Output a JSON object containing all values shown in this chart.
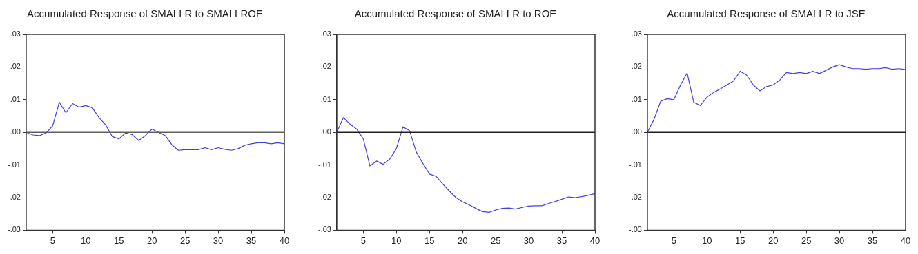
{
  "chart_data": [
    {
      "type": "line",
      "title": "Accumulated Response of SMALLR to SMALLROE",
      "x": [
        1,
        2,
        3,
        4,
        5,
        6,
        7,
        8,
        9,
        10,
        11,
        12,
        13,
        14,
        15,
        16,
        17,
        18,
        19,
        20,
        21,
        22,
        23,
        24,
        25,
        26,
        27,
        28,
        29,
        30,
        31,
        32,
        33,
        34,
        35,
        36,
        37,
        38,
        39,
        40
      ],
      "series": [
        {
          "color": "#4040e0",
          "values": [
            0,
            -0.0008,
            -0.001,
            -0.0002,
            0.002,
            0.0092,
            0.006,
            0.0088,
            0.0077,
            0.0082,
            0.0075,
            0.0045,
            0.0023,
            -0.0013,
            -0.002,
            -0.0002,
            -0.0007,
            -0.0025,
            -0.001,
            0.001,
            0,
            -0.001,
            -0.0038,
            -0.0055,
            -0.0053,
            -0.0053,
            -0.0053,
            -0.0047,
            -0.0053,
            -0.0047,
            -0.0052,
            -0.0055,
            -0.005,
            -0.004,
            -0.0035,
            -0.0032,
            -0.0032,
            -0.0035,
            -0.0032,
            -0.0035
          ]
        }
      ],
      "xlim": [
        1,
        40
      ],
      "xticks": [
        5,
        10,
        15,
        20,
        25,
        30,
        35,
        40
      ],
      "ylim": [
        -0.03,
        0.03
      ],
      "yticks": [
        {
          "value": -0.03,
          "label": "-.03"
        },
        {
          "value": -0.02,
          "label": "-.02"
        },
        {
          "value": -0.01,
          "label": "-.01"
        },
        {
          "value": 0,
          "label": ".00"
        },
        {
          "value": 0.01,
          "label": ".01"
        },
        {
          "value": 0.02,
          "label": ".02"
        },
        {
          "value": 0.03,
          "label": ".03"
        }
      ],
      "ref_lines": [
        {
          "axis": "y",
          "value": 0,
          "color": "#606060"
        }
      ],
      "grid": false,
      "legend": false,
      "marker": "none",
      "line_style": "solid"
    },
    {
      "type": "line",
      "title": "Accumulated Response of SMALLR to ROE",
      "x": [
        1,
        2,
        3,
        4,
        5,
        6,
        7,
        8,
        9,
        10,
        11,
        12,
        13,
        14,
        15,
        16,
        17,
        18,
        19,
        20,
        21,
        22,
        23,
        24,
        25,
        26,
        27,
        28,
        29,
        30,
        31,
        32,
        33,
        34,
        35,
        36,
        37,
        38,
        39,
        40
      ],
      "series": [
        {
          "color": "#4040e0",
          "values": [
            0,
            0.0045,
            0.0025,
            0.001,
            -0.002,
            -0.0103,
            -0.0088,
            -0.0098,
            -0.0082,
            -0.005,
            0.0017,
            0.0005,
            -0.006,
            -0.0095,
            -0.0128,
            -0.0135,
            -0.0158,
            -0.018,
            -0.02,
            -0.0213,
            -0.0222,
            -0.0233,
            -0.0243,
            -0.0245,
            -0.0238,
            -0.0233,
            -0.0232,
            -0.0235,
            -0.023,
            -0.0226,
            -0.0225,
            -0.0225,
            -0.0218,
            -0.0212,
            -0.0205,
            -0.0198,
            -0.02,
            -0.0197,
            -0.0193,
            -0.0188
          ]
        }
      ],
      "xlim": [
        1,
        40
      ],
      "xticks": [
        5,
        10,
        15,
        20,
        25,
        30,
        35,
        40
      ],
      "ylim": [
        -0.03,
        0.03
      ],
      "yticks": [
        {
          "value": -0.03,
          "label": "-.03"
        },
        {
          "value": -0.02,
          "label": "-.02"
        },
        {
          "value": -0.01,
          "label": "-.01"
        },
        {
          "value": 0,
          "label": ".00"
        },
        {
          "value": 0.01,
          "label": ".01"
        },
        {
          "value": 0.02,
          "label": ".02"
        },
        {
          "value": 0.03,
          "label": ".03"
        }
      ],
      "ref_lines": [
        {
          "axis": "y",
          "value": 0,
          "color": "#202020"
        }
      ],
      "grid": false,
      "legend": false,
      "marker": "none",
      "line_style": "solid"
    },
    {
      "type": "line",
      "title": "Accumulated Response of SMALLR to JSE",
      "x": [
        1,
        2,
        3,
        4,
        5,
        6,
        7,
        8,
        9,
        10,
        11,
        12,
        13,
        14,
        15,
        16,
        17,
        18,
        19,
        20,
        21,
        22,
        23,
        24,
        25,
        26,
        27,
        28,
        29,
        30,
        31,
        32,
        33,
        34,
        35,
        36,
        37,
        38,
        39,
        40
      ],
      "series": [
        {
          "color": "#4040e0",
          "values": [
            0,
            0.004,
            0.0095,
            0.0103,
            0.01,
            0.0145,
            0.0182,
            0.0092,
            0.0082,
            0.0108,
            0.0122,
            0.0133,
            0.0145,
            0.0157,
            0.0187,
            0.0175,
            0.0145,
            0.0127,
            0.014,
            0.0145,
            0.016,
            0.0183,
            0.018,
            0.0183,
            0.018,
            0.0187,
            0.018,
            0.019,
            0.02,
            0.0207,
            0.02,
            0.0195,
            0.0195,
            0.0193,
            0.0195,
            0.0195,
            0.0198,
            0.0193,
            0.0195,
            0.0192
          ]
        }
      ],
      "xlim": [
        1,
        40
      ],
      "xticks": [
        5,
        10,
        15,
        20,
        25,
        30,
        35,
        40
      ],
      "ylim": [
        -0.03,
        0.03
      ],
      "yticks": [
        {
          "value": -0.03,
          "label": "-.03"
        },
        {
          "value": -0.02,
          "label": "-.02"
        },
        {
          "value": -0.01,
          "label": "-.01"
        },
        {
          "value": 0,
          "label": ".00"
        },
        {
          "value": 0.01,
          "label": ".01"
        },
        {
          "value": 0.02,
          "label": ".02"
        },
        {
          "value": 0.03,
          "label": ".03"
        }
      ],
      "ref_lines": [
        {
          "axis": "y",
          "value": 0,
          "color": "#202020"
        }
      ],
      "grid": false,
      "legend": false,
      "marker": "none",
      "line_style": "solid"
    }
  ]
}
